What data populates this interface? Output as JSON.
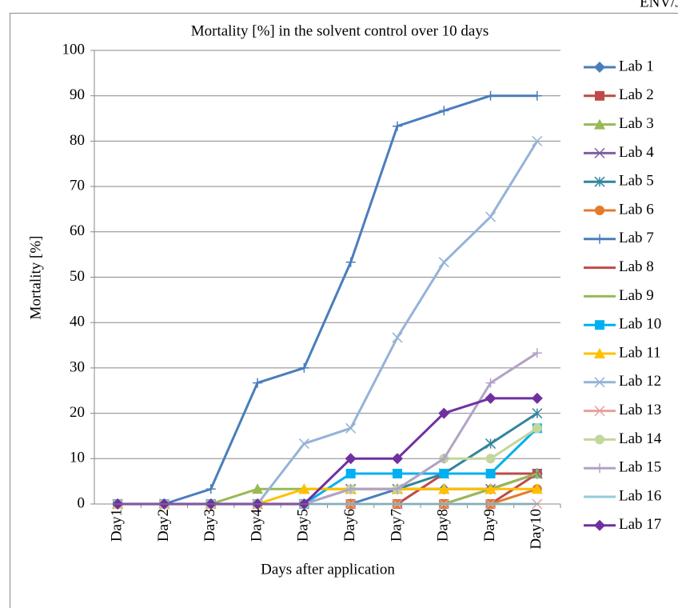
{
  "header": "ENV/JM",
  "chart_data": {
    "type": "line",
    "title": "Mortality [%] in the solvent control over 10 days",
    "x_label": "Days after application",
    "y_label": "Mortality [%]",
    "categories": [
      "Day1",
      "Day2",
      "Day3",
      "Day4",
      "Day5",
      "Day6",
      "Day7",
      "Day8",
      "Day9",
      "Day10"
    ],
    "ylim": [
      0,
      100
    ],
    "yticks": [
      0,
      10,
      20,
      30,
      40,
      50,
      60,
      70,
      80,
      90,
      100
    ],
    "grid": true,
    "legend": "right",
    "series": [
      {
        "name": "Lab 1",
        "color": "#4a7ebb",
        "marker": "diamond",
        "values": [
          0,
          0,
          0,
          0,
          0,
          0,
          3.3,
          3.3,
          3.3,
          6.7
        ]
      },
      {
        "name": "Lab 2",
        "color": "#be4b48",
        "marker": "square",
        "values": [
          0,
          0,
          0,
          0,
          0,
          0,
          0,
          0,
          0,
          6.7
        ]
      },
      {
        "name": "Lab 3",
        "color": "#98b954",
        "marker": "triangle",
        "values": [
          0,
          0,
          0,
          3.3,
          3.3,
          3.3,
          3.3,
          3.3,
          3.3,
          6.7
        ]
      },
      {
        "name": "Lab 4",
        "color": "#7d60a0",
        "marker": "x",
        "values": [
          0,
          0,
          0,
          0,
          0,
          0,
          0,
          0,
          3.3,
          6.7
        ]
      },
      {
        "name": "Lab 5",
        "color": "#31859c",
        "marker": "star",
        "values": [
          0,
          0,
          0,
          0,
          0,
          3.3,
          3.3,
          6.7,
          13.3,
          20
        ]
      },
      {
        "name": "Lab 6",
        "color": "#e47b2c",
        "marker": "circle",
        "values": [
          0,
          0,
          0,
          0,
          0,
          0,
          0,
          0,
          0,
          3.3
        ]
      },
      {
        "name": "Lab 7",
        "color": "#4a7ebb",
        "marker": "plus",
        "values": [
          0,
          0,
          3.3,
          26.7,
          30,
          53.3,
          83.3,
          86.7,
          90,
          90
        ]
      },
      {
        "name": "Lab 8",
        "color": "#be4b48",
        "marker": "none",
        "values": [
          0,
          0,
          0,
          0,
          0,
          0,
          0,
          6.7,
          6.7,
          6.7
        ]
      },
      {
        "name": "Lab 9",
        "color": "#98b954",
        "marker": "none",
        "values": [
          0,
          0,
          0,
          0,
          0,
          0,
          0,
          0,
          3.3,
          6.7
        ]
      },
      {
        "name": "Lab 10",
        "color": "#00b0f0",
        "marker": "square",
        "values": [
          0,
          0,
          0,
          0,
          0,
          6.7,
          6.7,
          6.7,
          6.7,
          16.7
        ]
      },
      {
        "name": "Lab 11",
        "color": "#ffc000",
        "marker": "triangle",
        "values": [
          0,
          0,
          0,
          0,
          3.3,
          3.3,
          3.3,
          3.3,
          3.3,
          3.3
        ]
      },
      {
        "name": "Lab 12",
        "color": "#95b3d7",
        "marker": "x",
        "values": [
          0,
          0,
          0,
          0,
          13.3,
          16.7,
          36.7,
          53.3,
          63.3,
          80
        ]
      },
      {
        "name": "Lab 13",
        "color": "#e6a09d",
        "marker": "x",
        "values": [
          0,
          0,
          0,
          0,
          0,
          0,
          0,
          0,
          0,
          0
        ]
      },
      {
        "name": "Lab 14",
        "color": "#c3d69b",
        "marker": "circle",
        "values": [
          0,
          0,
          0,
          0,
          0,
          3.3,
          3.3,
          10,
          10,
          16.7
        ]
      },
      {
        "name": "Lab 15",
        "color": "#b3a2c7",
        "marker": "plus",
        "values": [
          0,
          0,
          0,
          0,
          0,
          3.3,
          3.3,
          10,
          26.7,
          33.3
        ]
      },
      {
        "name": "Lab 16",
        "color": "#93cddd",
        "marker": "none",
        "values": [
          0,
          0,
          0,
          0,
          0,
          0,
          0,
          0,
          0,
          0
        ]
      },
      {
        "name": "Lab 17",
        "color": "#7030a0",
        "marker": "diamond",
        "values": [
          0,
          0,
          0,
          0,
          0,
          10,
          10,
          20,
          23.3,
          23.3
        ]
      }
    ]
  }
}
